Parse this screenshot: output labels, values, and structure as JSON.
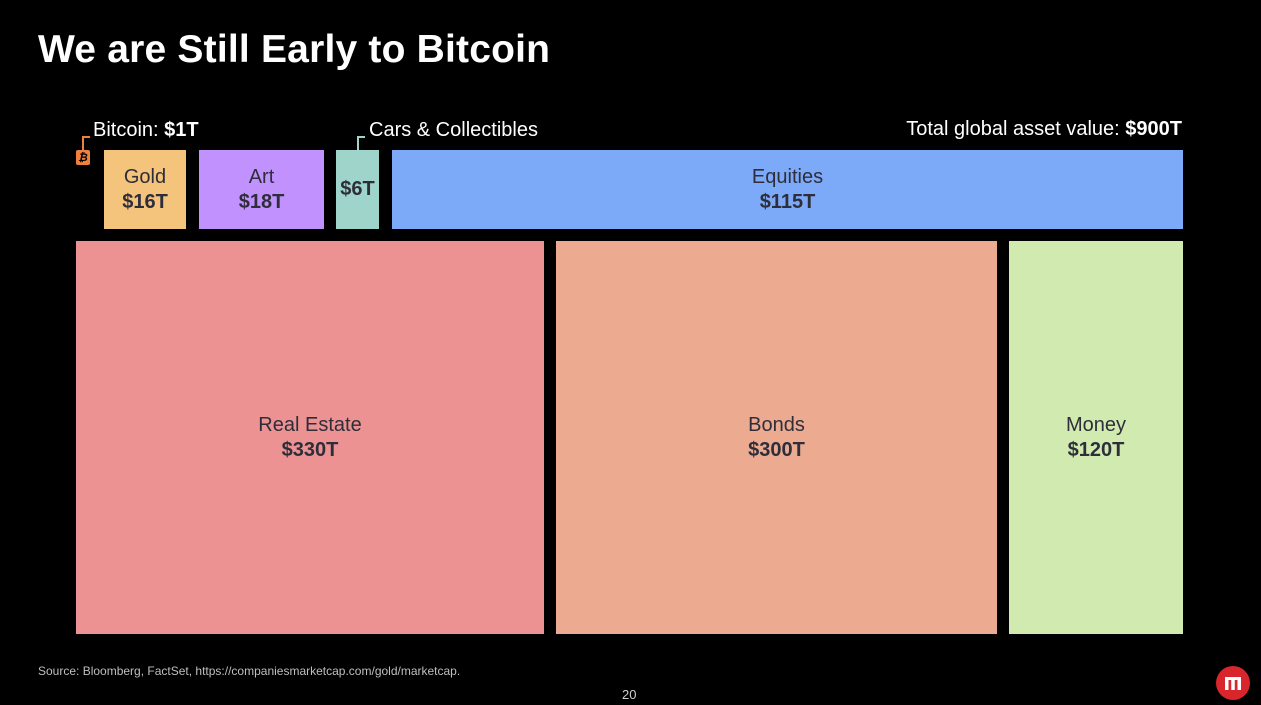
{
  "slide": {
    "title": "We are Still Early to Bitcoin",
    "source": "Source: Bloomberg, FactSet, https://companiesmarketcap.com/gold/marketcap.",
    "page_number": "20"
  },
  "icons": {
    "bitcoin": "bitcoin-icon",
    "brand_logo": "brand-logo-icon"
  },
  "colors": {
    "background": "#000000",
    "bitcoin": "#f0803c",
    "gold": "#f4c37c",
    "art": "#c191fe",
    "cars": "#9fd4cb",
    "equities": "#7daaf8",
    "real_estate": "#ec9292",
    "bonds": "#ecab91",
    "money": "#d0eaaf",
    "brand_logo": "#d9262c"
  },
  "chart_data": {
    "type": "treemap",
    "title": "We are Still Early to Bitcoin",
    "unit": "$T",
    "total": {
      "label_prefix": "Total global asset value: ",
      "label_value": "$900T",
      "value": 900
    },
    "items": [
      {
        "name": "Bitcoin",
        "name_label": "Bitcoin: ",
        "value": 1,
        "label": "$1T"
      },
      {
        "name": "Gold",
        "value": 16,
        "label": "$16T"
      },
      {
        "name": "Art",
        "value": 18,
        "label": "$18T"
      },
      {
        "name": "Cars & Collectibles",
        "value": 6,
        "label": "$6T"
      },
      {
        "name": "Equities",
        "value": 115,
        "label": "$115T"
      },
      {
        "name": "Real Estate",
        "value": 330,
        "label": "$330T"
      },
      {
        "name": "Bonds",
        "value": 300,
        "label": "$300T"
      },
      {
        "name": "Money",
        "value": 120,
        "label": "$120T"
      }
    ]
  }
}
